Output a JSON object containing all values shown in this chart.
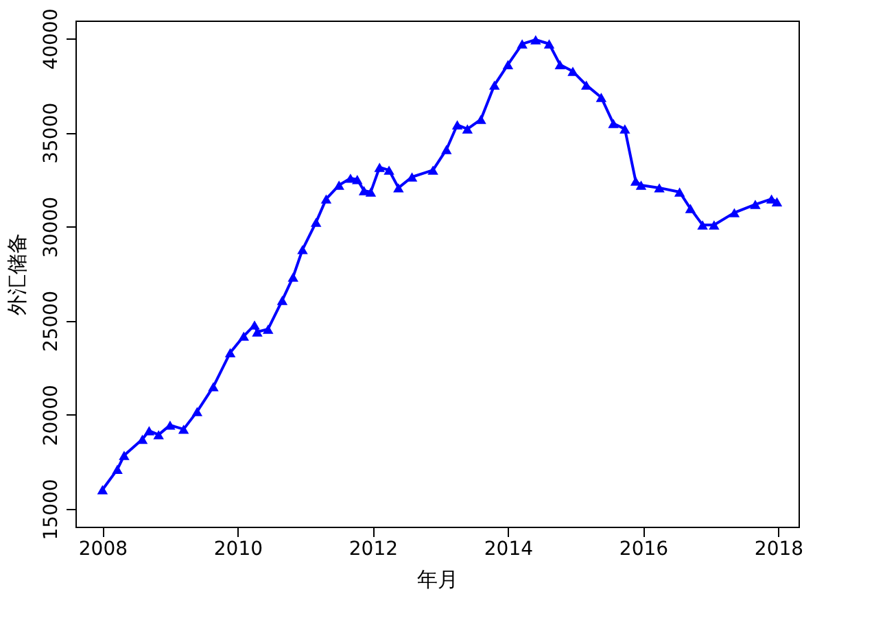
{
  "chart_data": {
    "type": "line",
    "xlabel": "年月",
    "ylabel": "外汇储备",
    "marker": "triangle",
    "line_style": "solid",
    "grid": false,
    "xlim": [
      2007.6,
      2018.3
    ],
    "xticks": [
      2008,
      2010,
      2012,
      2014,
      2016,
      2018
    ],
    "ylim": [
      14050,
      40950
    ],
    "yticks": [
      15000,
      20000,
      25000,
      30000,
      35000,
      40000
    ],
    "series": [
      {
        "color": "#0000ff",
        "x": [
          2008.0,
          2008.22,
          2008.32,
          2008.59,
          2008.69,
          2008.83,
          2009.0,
          2009.2,
          2009.4,
          2009.64,
          2009.89,
          2010.09,
          2010.25,
          2010.29,
          2010.45,
          2010.66,
          2010.82,
          2010.96,
          2011.16,
          2011.31,
          2011.5,
          2011.67,
          2011.77,
          2011.87,
          2011.97,
          2012.1,
          2012.24,
          2012.38,
          2012.58,
          2012.89,
          2013.09,
          2013.25,
          2013.4,
          2013.6,
          2013.8,
          2014.0,
          2014.21,
          2014.41,
          2014.61,
          2014.77,
          2014.96,
          2015.16,
          2015.38,
          2015.56,
          2015.73,
          2015.89,
          2015.97,
          2016.24,
          2016.54,
          2016.7,
          2016.88,
          2017.05,
          2017.35,
          2017.66,
          2017.9,
          2017.98
        ],
        "values": [
          16020,
          17100,
          17840,
          18700,
          19150,
          18940,
          19450,
          19230,
          20170,
          21490,
          23300,
          24180,
          24770,
          24400,
          24550,
          26080,
          27320,
          28780,
          30230,
          31470,
          32200,
          32570,
          32500,
          31910,
          31840,
          33150,
          33000,
          32060,
          32640,
          33000,
          34100,
          35410,
          35190,
          35700,
          37520,
          38610,
          39710,
          39930,
          39710,
          38610,
          38250,
          37520,
          36870,
          35480,
          35190,
          32420,
          32200,
          32060,
          31840,
          30960,
          30090,
          30090,
          30740,
          31180,
          31470,
          31320
        ]
      }
    ]
  }
}
